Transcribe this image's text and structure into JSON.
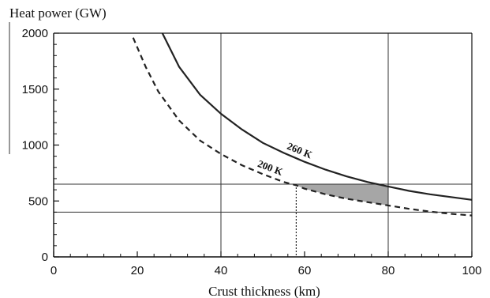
{
  "chart_data": {
    "type": "line",
    "ylabel": "Heat power (GW)",
    "xlabel": "Crust thickness (km)",
    "xlim": [
      0,
      100
    ],
    "ylim": [
      0,
      2000
    ],
    "x_ticks": [
      0,
      20,
      40,
      60,
      80,
      100
    ],
    "y_ticks": [
      0,
      500,
      1000,
      1500,
      2000
    ],
    "series": [
      {
        "name": "260 K",
        "style": "solid",
        "color": "#222222",
        "x": [
          26,
          30,
          35,
          40,
          45,
          50,
          55,
          60,
          65,
          70,
          75,
          80,
          85,
          90,
          95,
          100
        ],
        "y": [
          2000,
          1700,
          1450,
          1280,
          1140,
          1020,
          930,
          850,
          780,
          720,
          670,
          630,
          590,
          560,
          535,
          510
        ]
      },
      {
        "name": "200 K",
        "style": "dashed",
        "color": "#222222",
        "x": [
          19,
          22,
          25,
          30,
          35,
          40,
          45,
          50,
          55,
          58,
          60,
          65,
          70,
          75,
          80,
          85,
          90,
          95,
          100
        ],
        "y": [
          1960,
          1700,
          1480,
          1220,
          1040,
          920,
          820,
          740,
          670,
          640,
          610,
          560,
          520,
          490,
          460,
          430,
          405,
          385,
          370
        ]
      }
    ],
    "reference_lines": {
      "horizontal": [
        650,
        400
      ],
      "vertical": [
        40,
        80
      ],
      "vertical_dotted": 58
    },
    "shaded_region": {
      "x_from": 58,
      "x_to": 80,
      "color": "#a6a6a6"
    }
  }
}
